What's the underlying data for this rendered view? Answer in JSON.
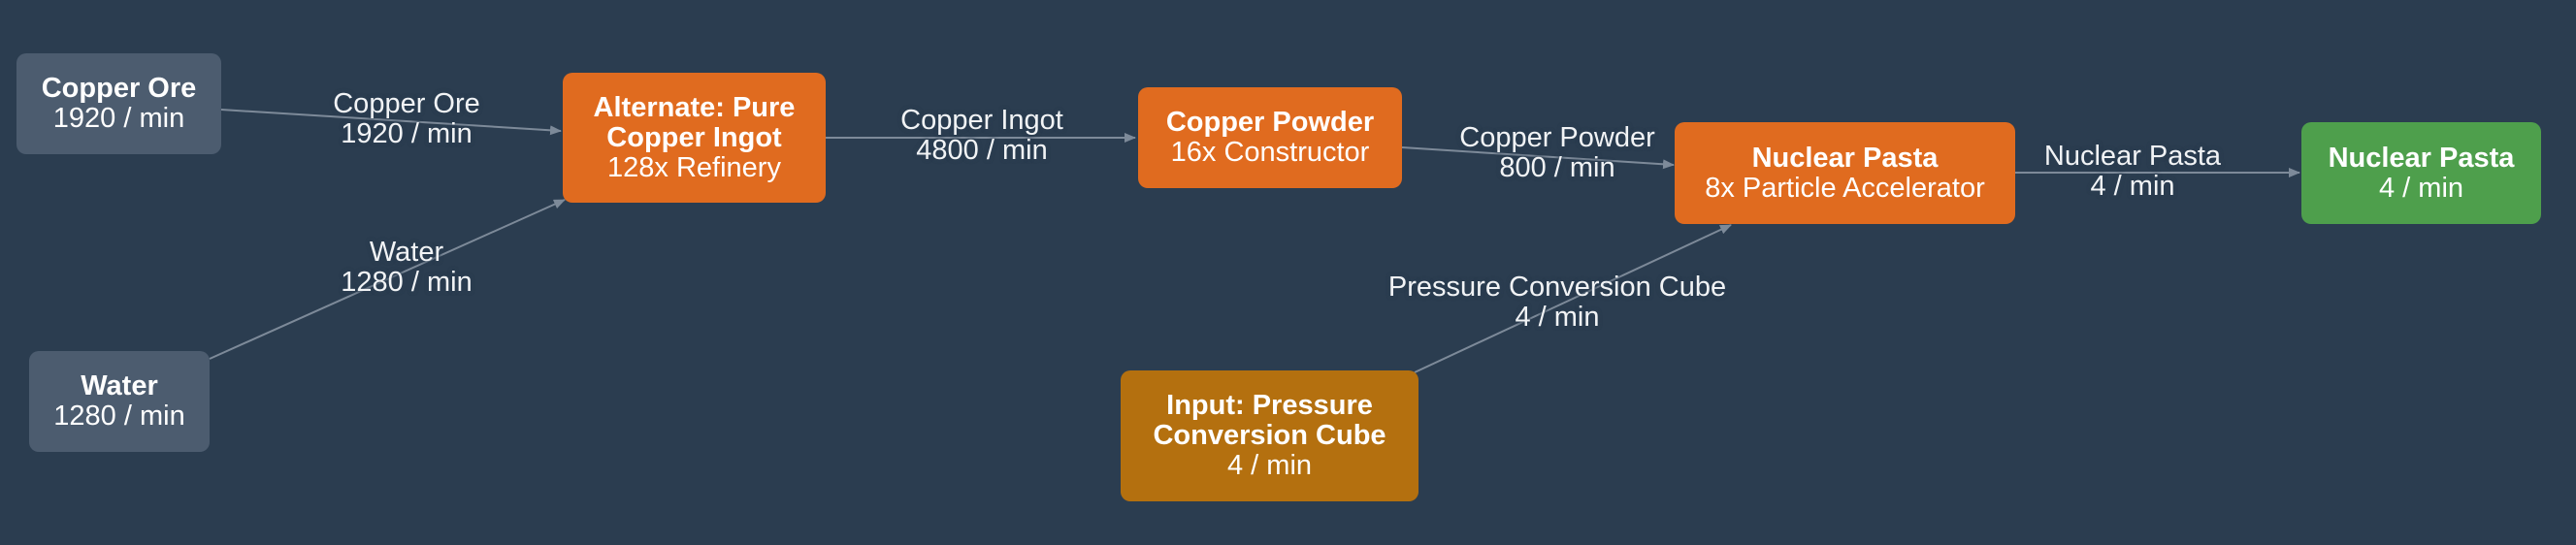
{
  "colors": {
    "background": "#2b3d50",
    "raw_resource": "#4c5c6f",
    "process": "#e06b1f",
    "external_input": "#b4700f",
    "final_output": "#4e9f4c",
    "edge": "#7d8a99"
  },
  "nodes": {
    "copper_ore": {
      "title": "Copper Ore",
      "sub": "1920 / min"
    },
    "water": {
      "title": "Water",
      "sub": "1280 / min"
    },
    "refinery": {
      "title1": "Alternate: Pure",
      "title2": "Copper Ingot",
      "sub": "128x Refinery"
    },
    "powder": {
      "title": "Copper Powder",
      "sub": "16x Constructor"
    },
    "input_cube": {
      "title1": "Input: Pressure",
      "title2": "Conversion Cube",
      "sub": "4 / min"
    },
    "pasta": {
      "title": "Nuclear Pasta",
      "sub": "8x Particle Accelerator"
    },
    "output": {
      "title": "Nuclear Pasta",
      "sub": "4 / min"
    }
  },
  "edges": {
    "ore_to_refinery": {
      "item": "Copper Ore",
      "rate": "1920 / min"
    },
    "water_to_refinery": {
      "item": "Water",
      "rate": "1280 / min"
    },
    "refinery_to_powder": {
      "item": "Copper Ingot",
      "rate": "4800 / min"
    },
    "powder_to_pasta": {
      "item": "Copper Powder",
      "rate": "800 / min"
    },
    "cube_to_pasta": {
      "item": "Pressure Conversion Cube",
      "rate": "4 / min"
    },
    "pasta_to_output": {
      "item": "Nuclear Pasta",
      "rate": "4 / min"
    }
  }
}
